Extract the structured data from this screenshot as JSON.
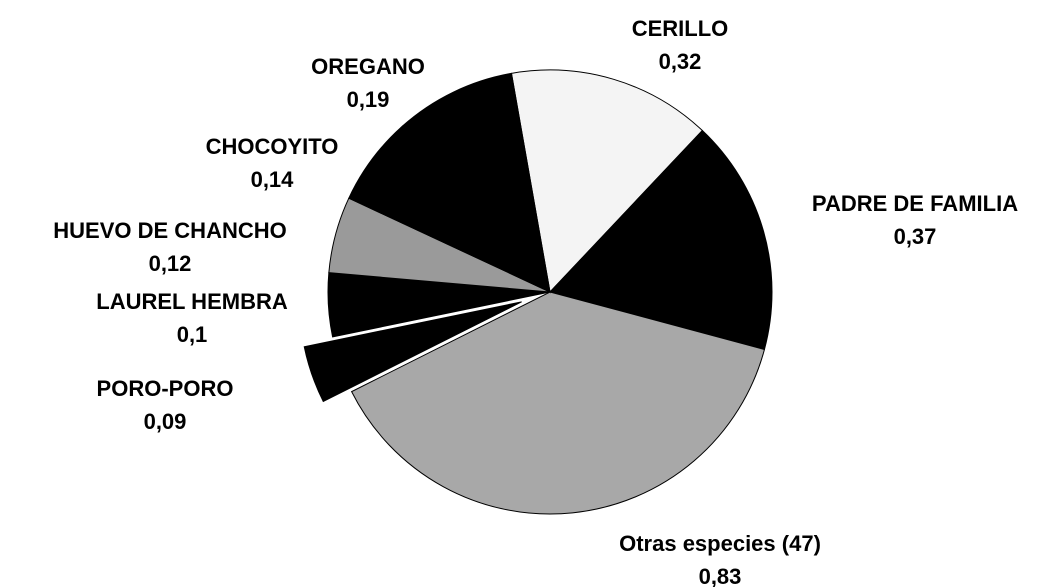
{
  "chart_data": {
    "type": "pie",
    "categories": [
      "CERILLO",
      "PADRE DE FAMILIA",
      "Otras especies (47)",
      "PORO-PORO",
      "LAUREL HEMBRA",
      "HUEVO DE CHANCHO",
      "CHOCOYITO",
      "OREGANO"
    ],
    "values": [
      0.32,
      0.37,
      0.83,
      0.09,
      0.1,
      0.12,
      0.14,
      0.19
    ],
    "value_labels": [
      "0,32",
      "0,37",
      "0,83",
      "0,09",
      "0,1",
      "0,12",
      "0,14",
      "0,19"
    ],
    "colors": [
      "#f4f4f4",
      "#000000",
      "#a8a8a8",
      "#000000",
      "#000000",
      "#9a9a9a",
      "#000000",
      "#000000"
    ]
  }
}
